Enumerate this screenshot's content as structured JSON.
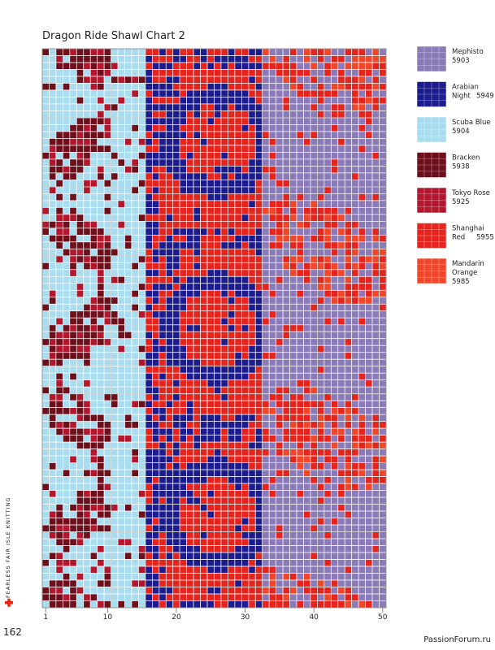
{
  "header": {
    "title": "Dragon Ride Shawl Chart 2"
  },
  "axis": {
    "labels": [
      1,
      10,
      20,
      30,
      40,
      50
    ]
  },
  "legend": [
    {
      "name": "Mephisto",
      "code": "5903",
      "color": "#8a7bb8"
    },
    {
      "name": "Arabian Night",
      "code": "5949",
      "color": "#1c1c8e"
    },
    {
      "name": "Scuba Blue",
      "code": "5904",
      "color": "#a9dcef"
    },
    {
      "name": "Bracken",
      "code": "5938",
      "color": "#6e0f1c"
    },
    {
      "name": "Tokyo Rose",
      "code": "5925",
      "color": "#b3172e"
    },
    {
      "name": "Shanghai Red",
      "code": "5955",
      "color": "#e5241e"
    },
    {
      "name": "Mandarin Orange",
      "code": "5985",
      "color": "#f0472a"
    }
  ],
  "side_text": "FEARLESS FAIR ISLE KNITTING",
  "page_number": "162",
  "watermark": "PassionForum.ru"
}
